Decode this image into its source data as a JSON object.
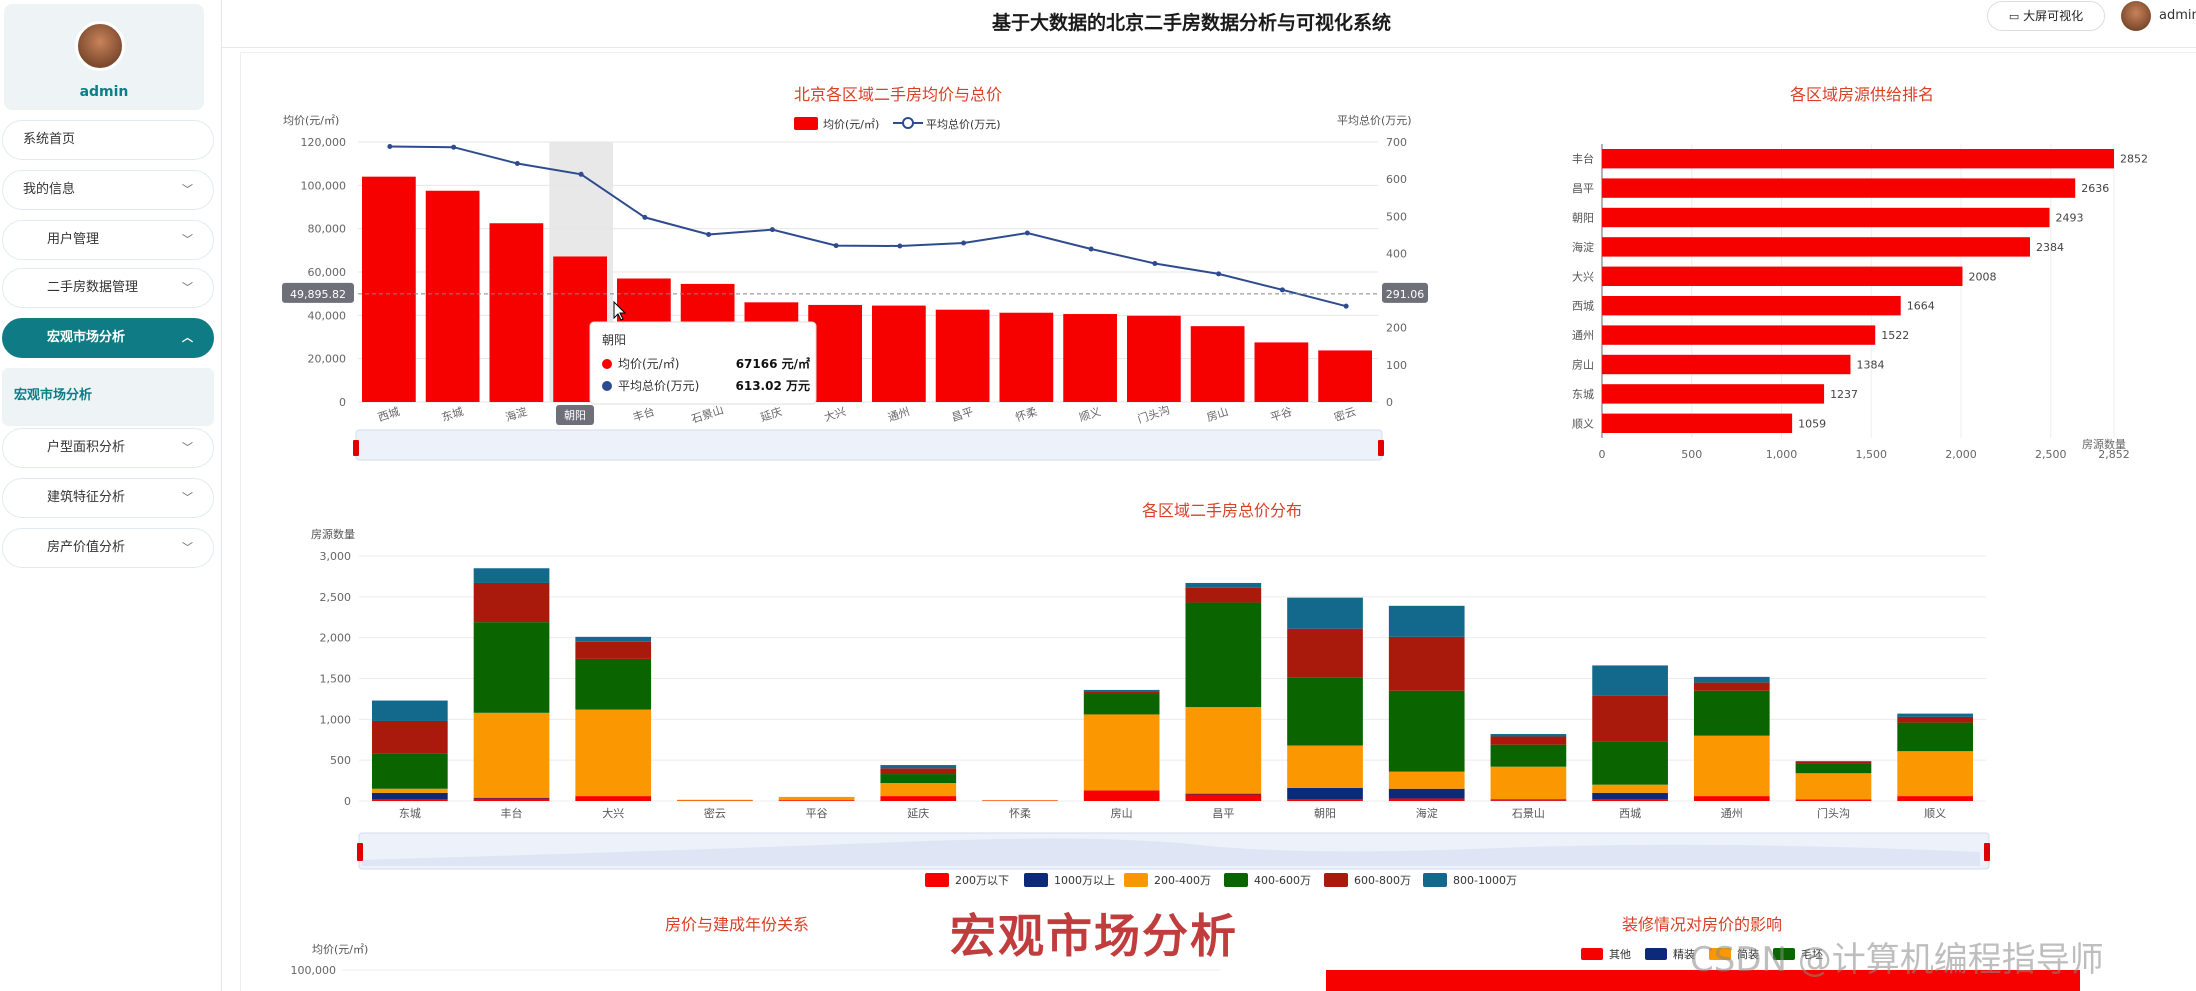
{
  "app": {
    "title": "基于大数据的北京二手房数据分析与可视化系统",
    "big_screen_button": "大屏可视化",
    "username": "admin"
  },
  "sidebar": {
    "username": "admin",
    "items": [
      {
        "label": "系统首页",
        "chevron": false,
        "sub": false,
        "active": false
      },
      {
        "label": "我的信息",
        "chevron": true,
        "sub": false,
        "active": false
      },
      {
        "label": "用户管理",
        "chevron": true,
        "sub": true,
        "active": false
      },
      {
        "label": "二手房数据管理",
        "chevron": true,
        "sub": true,
        "active": false
      },
      {
        "label": "宏观市场分析",
        "chevron": true,
        "sub": true,
        "active": true
      },
      {
        "label": "户型面积分析",
        "chevron": true,
        "sub": true,
        "active": false
      },
      {
        "label": "建筑特征分析",
        "chevron": true,
        "sub": true,
        "active": false
      },
      {
        "label": "房产价值分析",
        "chevron": true,
        "sub": true,
        "active": false
      }
    ],
    "submenu": {
      "label": "宏观市场分析"
    }
  },
  "watermark": "宏观市场分析",
  "csdn_watermark": "CSDN @计算机编程指导师",
  "colors": {
    "primary": "#0f7c85",
    "bar_red": "#f70000",
    "line_blue": "#2f4b8f",
    "title_red": "#d94025"
  },
  "chart_data": [
    {
      "type": "bar",
      "title": "北京各区域二手房均价与总价",
      "ylabel": "均价(元/㎡)",
      "y2label": "平均总价(万元)",
      "ylim": [
        0,
        120000
      ],
      "y2lim": [
        0,
        700
      ],
      "yticks": [
        "0",
        "20,000",
        "40,000",
        "60,000",
        "80,000",
        "100,000",
        "120,000"
      ],
      "y2ticks": [
        "0",
        "100",
        "200",
        "300",
        "400",
        "500",
        "600",
        "700"
      ],
      "categories": [
        "西城",
        "东城",
        "海淀",
        "朝阳",
        "丰台",
        "石景山",
        "延庆",
        "大兴",
        "通州",
        "昌平",
        "怀柔",
        "顺义",
        "门头沟",
        "房山",
        "平谷",
        "密云"
      ],
      "series": [
        {
          "name": "均价(元/㎡)",
          "kind": "bar",
          "values": [
            104000,
            97500,
            82500,
            67166,
            57000,
            54500,
            46000,
            44800,
            44500,
            42600,
            41200,
            40600,
            39800,
            35000,
            27500,
            23800
          ]
        },
        {
          "name": "平均总价(万元)",
          "kind": "line",
          "values": [
            688,
            686,
            642,
            613.02,
            497,
            451,
            464,
            421,
            420,
            428,
            455,
            412,
            373,
            345,
            302,
            258
          ]
        }
      ],
      "axis_pointer": {
        "y_label": "49,895.82",
        "y2_label": "291.06",
        "x_label": "朝阳"
      },
      "tooltip": {
        "title": "朝阳",
        "rows": [
          {
            "label": "均价(元/㎡)",
            "value": "67166 元/㎡"
          },
          {
            "label": "平均总价(万元)",
            "value": "613.02 万元"
          }
        ]
      },
      "grid": true
    },
    {
      "type": "bar",
      "orientation": "horizontal",
      "title": "各区域房源供给排名",
      "xlabel": "房源数量",
      "xlim": [
        0,
        2852
      ],
      "xticks": [
        "0",
        "500",
        "1,000",
        "1,500",
        "2,000",
        "2,500",
        "2,852"
      ],
      "categories": [
        "丰台",
        "昌平",
        "朝阳",
        "海淀",
        "大兴",
        "西城",
        "通州",
        "房山",
        "东城",
        "顺义"
      ],
      "values": [
        2852,
        2636,
        2493,
        2384,
        2008,
        1664,
        1522,
        1384,
        1237,
        1059
      ]
    },
    {
      "type": "bar",
      "stacked": true,
      "title": "各区域二手房总价分布",
      "ylabel": "房源数量",
      "ylim": [
        0,
        3000
      ],
      "yticks": [
        "0",
        "500",
        "1,000",
        "1,500",
        "2,000",
        "2,500",
        "3,000"
      ],
      "categories": [
        "东城",
        "丰台",
        "大兴",
        "密云",
        "平谷",
        "延庆",
        "怀柔",
        "房山",
        "昌平",
        "朝阳",
        "海淀",
        "石景山",
        "西城",
        "通州",
        "门头沟",
        "顺义"
      ],
      "series": [
        {
          "name": "200万以下",
          "color": "#f70000",
          "values": [
            20,
            30,
            60,
            5,
            10,
            60,
            5,
            130,
            80,
            20,
            30,
            10,
            20,
            60,
            20,
            60
          ]
        },
        {
          "name": "1000万以上",
          "color": "#0d2a7a",
          "values": [
            80,
            10,
            0,
            0,
            0,
            0,
            0,
            0,
            10,
            140,
            120,
            10,
            80,
            0,
            0,
            0
          ]
        },
        {
          "name": "200-400万",
          "color": "#fb9700",
          "values": [
            50,
            1040,
            1060,
            10,
            40,
            160,
            5,
            930,
            1060,
            520,
            210,
            400,
            100,
            740,
            320,
            550
          ]
        },
        {
          "name": "400-600万",
          "color": "#0a6400",
          "values": [
            430,
            1110,
            620,
            0,
            0,
            110,
            0,
            250,
            1280,
            830,
            990,
            270,
            530,
            550,
            120,
            350
          ]
        },
        {
          "name": "600-800万",
          "color": "#aa1a0c",
          "values": [
            400,
            480,
            210,
            0,
            0,
            70,
            0,
            30,
            180,
            600,
            660,
            100,
            560,
            100,
            20,
            70
          ]
        },
        {
          "name": "800-1000万",
          "color": "#12698c",
          "values": [
            250,
            180,
            60,
            0,
            0,
            40,
            0,
            20,
            60,
            380,
            380,
            30,
            370,
            70,
            10,
            40
          ]
        }
      ],
      "legend_position": "bottom",
      "grid": true
    },
    {
      "type": "line",
      "title": "房价与建成年份关系",
      "ylabel": "均价(元/㎡)",
      "yticks": [
        "100,000"
      ]
    },
    {
      "type": "bar",
      "title": "装修情况对房价的影响",
      "legend": [
        "其他",
        "精装",
        "简装",
        "毛坯"
      ]
    }
  ]
}
